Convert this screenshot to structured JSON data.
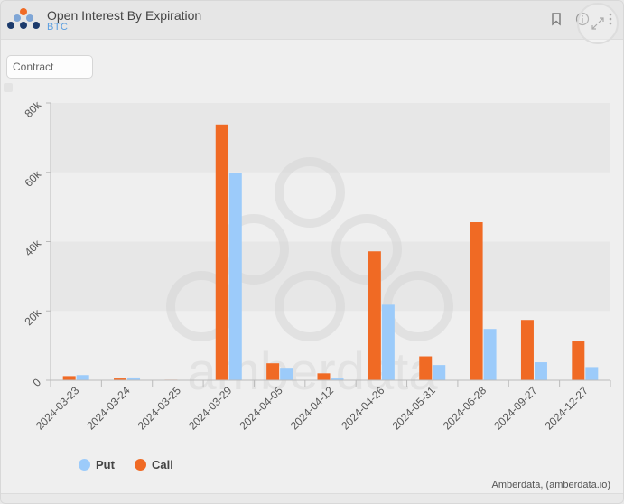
{
  "header": {
    "title": "Open Interest By Expiration",
    "subtitle": "BTC"
  },
  "filter": {
    "contract_placeholder": "Contract"
  },
  "watermark": "amberdata",
  "credits": "Amberdata, (amberdata.io)",
  "colors": {
    "put": "#9ccbfa",
    "call": "#f06a24",
    "logo_blue": "#1b3a6b",
    "logo_orange": "#f06a24"
  },
  "chart_data": {
    "type": "bar",
    "categories": [
      "2024-03-23",
      "2024-03-24",
      "2024-03-25",
      "2024-03-29",
      "2024-04-05",
      "2024-04-12",
      "2024-04-26",
      "2024-05-31",
      "2024-06-28",
      "2024-09-27",
      "2024-12-27"
    ],
    "series": [
      {
        "name": "Call",
        "values": [
          1200,
          500,
          150,
          73800,
          4900,
          2000,
          37200,
          6900,
          45600,
          17400,
          11200
        ]
      },
      {
        "name": "Put",
        "values": [
          1500,
          800,
          100,
          59800,
          3600,
          500,
          21800,
          4400,
          14800,
          5200,
          3800
        ]
      }
    ],
    "y_ticks": [
      "0",
      "20k",
      "40k",
      "60k",
      "80k"
    ],
    "ylim": [
      0,
      80000
    ],
    "legend": [
      "Put",
      "Call"
    ],
    "legend_position": "bottom-left",
    "grid": "alternating horizontal bands"
  }
}
